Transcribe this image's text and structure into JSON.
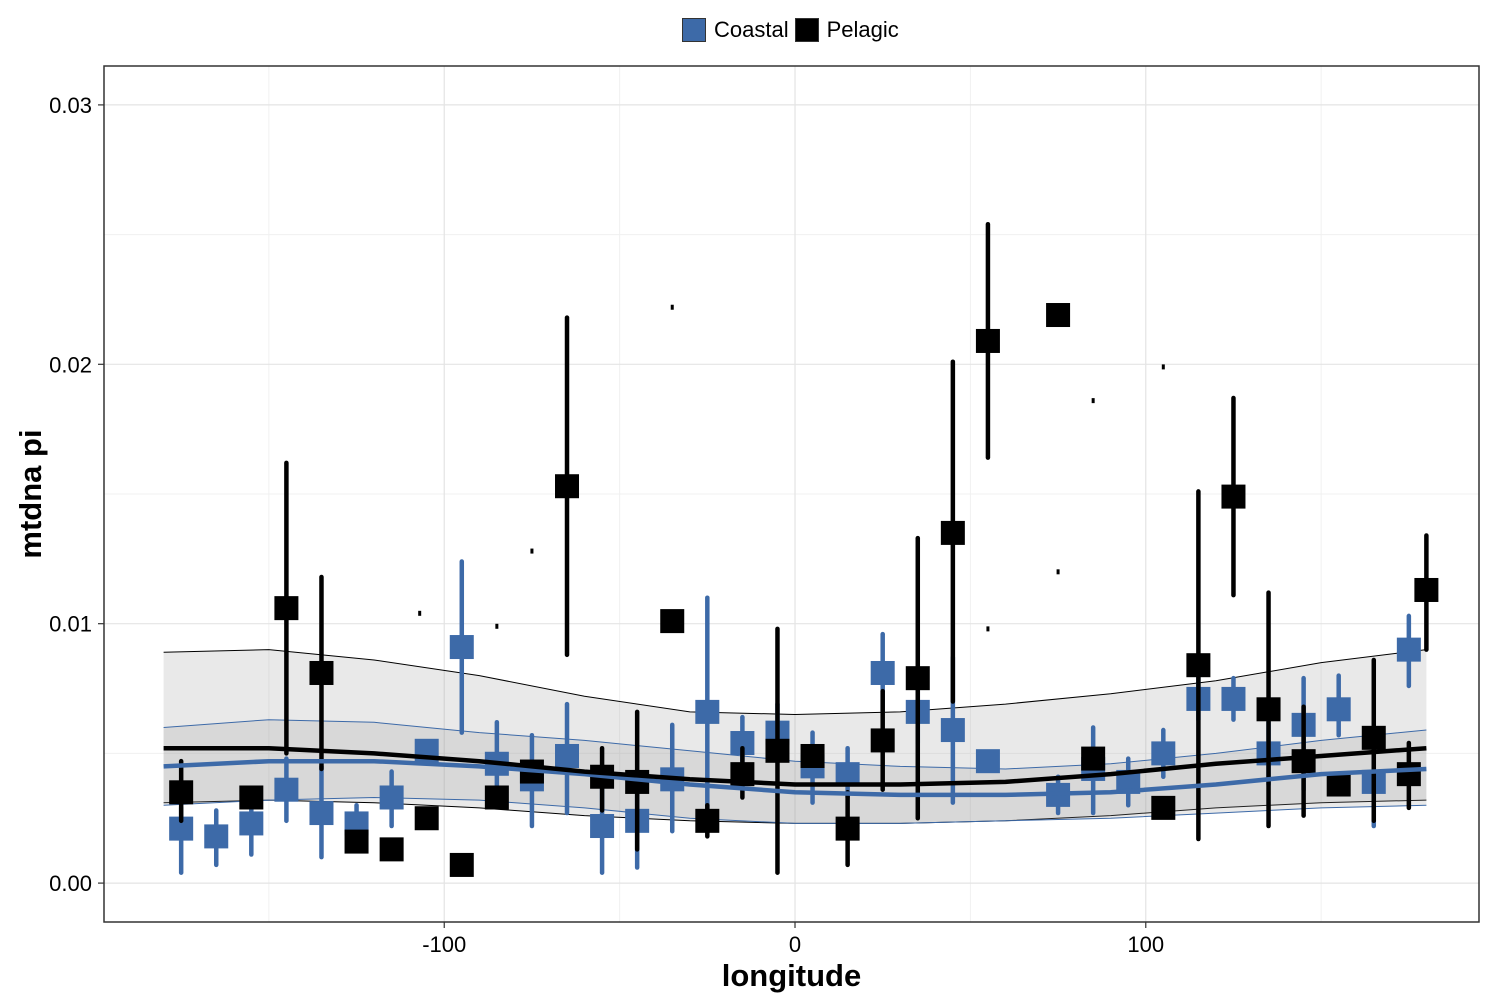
{
  "chart_data": {
    "type": "scatter",
    "xlabel": "longitude",
    "ylabel": "mtdna pi",
    "xlim": [
      -197,
      195
    ],
    "ylim": [
      -0.0015,
      0.0315
    ],
    "x_ticks": [
      -100,
      0,
      100
    ],
    "x_tick_labels": [
      "-100",
      "0",
      "100"
    ],
    "y_ticks": [
      0.0,
      0.01,
      0.02,
      0.03
    ],
    "y_tick_labels": [
      "0.00",
      "0.01",
      "0.02",
      "0.03"
    ],
    "grid": true,
    "legend_position": "top",
    "series": [
      {
        "name": "Coastal",
        "color": "#3d6aa8",
        "points": [
          {
            "x": -175,
            "y": 0.0021,
            "lo": 0.0004,
            "hi": 0.0029
          },
          {
            "x": -165,
            "y": 0.0018,
            "lo": 0.0007,
            "hi": 0.0028
          },
          {
            "x": -155,
            "y": 0.0023,
            "lo": 0.0011,
            "hi": 0.0035
          },
          {
            "x": -145,
            "y": 0.0036,
            "lo": 0.0024,
            "hi": 0.0048
          },
          {
            "x": -135,
            "y": 0.0027,
            "lo": 0.001,
            "hi": 0.0045
          },
          {
            "x": -125,
            "y": 0.0023,
            "lo": 0.0017,
            "hi": 0.003
          },
          {
            "x": -115,
            "y": 0.0033,
            "lo": 0.0022,
            "hi": 0.0043
          },
          {
            "x": -105,
            "y": 0.0051,
            "lo": 0.0051,
            "hi": 0.0051
          },
          {
            "x": -95,
            "y": 0.0091,
            "lo": 0.0058,
            "hi": 0.0124
          },
          {
            "x": -85,
            "y": 0.0046,
            "lo": 0.0031,
            "hi": 0.0062
          },
          {
            "x": -75,
            "y": 0.004,
            "lo": 0.0022,
            "hi": 0.0057
          },
          {
            "x": -65,
            "y": 0.0049,
            "lo": 0.0027,
            "hi": 0.0069
          },
          {
            "x": -55,
            "y": 0.0022,
            "lo": 0.0004,
            "hi": 0.0041
          },
          {
            "x": -45,
            "y": 0.0024,
            "lo": 0.0006,
            "hi": 0.0039
          },
          {
            "x": -35,
            "y": 0.004,
            "lo": 0.002,
            "hi": 0.0061
          },
          {
            "x": -25,
            "y": 0.0066,
            "lo": 0.0023,
            "hi": 0.011
          },
          {
            "x": -15,
            "y": 0.0054,
            "lo": 0.0044,
            "hi": 0.0064
          },
          {
            "x": -5,
            "y": 0.0058,
            "lo": 0.0047,
            "hi": 0.0069
          },
          {
            "x": 5,
            "y": 0.0045,
            "lo": 0.0031,
            "hi": 0.0058
          },
          {
            "x": 15,
            "y": 0.0042,
            "lo": 0.0033,
            "hi": 0.0052
          },
          {
            "x": 25,
            "y": 0.0081,
            "lo": 0.0066,
            "hi": 0.0096
          },
          {
            "x": 35,
            "y": 0.0066,
            "lo": 0.0054,
            "hi": 0.0078
          },
          {
            "x": 45,
            "y": 0.0059,
            "lo": 0.0031,
            "hi": 0.0087
          },
          {
            "x": 55,
            "y": 0.0047,
            "lo": 0.0047,
            "hi": 0.0047
          },
          {
            "x": 75,
            "y": 0.0034,
            "lo": 0.0027,
            "hi": 0.0041
          },
          {
            "x": 85,
            "y": 0.0044,
            "lo": 0.0027,
            "hi": 0.006
          },
          {
            "x": 95,
            "y": 0.0039,
            "lo": 0.003,
            "hi": 0.0048
          },
          {
            "x": 105,
            "y": 0.005,
            "lo": 0.0041,
            "hi": 0.0059
          },
          {
            "x": 115,
            "y": 0.0071,
            "lo": 0.0063,
            "hi": 0.008
          },
          {
            "x": 125,
            "y": 0.0071,
            "lo": 0.0063,
            "hi": 0.0079
          },
          {
            "x": 135,
            "y": 0.005,
            "lo": 0.0038,
            "hi": 0.0062
          },
          {
            "x": 145,
            "y": 0.0061,
            "lo": 0.0036,
            "hi": 0.0079
          },
          {
            "x": 155,
            "y": 0.0067,
            "lo": 0.0057,
            "hi": 0.008
          },
          {
            "x": 165,
            "y": 0.0039,
            "lo": 0.0022,
            "hi": 0.0056
          },
          {
            "x": 175,
            "y": 0.009,
            "lo": 0.0076,
            "hi": 0.0103
          }
        ],
        "smooth": [
          {
            "x": -180,
            "y": 0.0045
          },
          {
            "x": -150,
            "y": 0.0047
          },
          {
            "x": -120,
            "y": 0.0047
          },
          {
            "x": -90,
            "y": 0.0045
          },
          {
            "x": -60,
            "y": 0.0042
          },
          {
            "x": -30,
            "y": 0.0038
          },
          {
            "x": 0,
            "y": 0.0035
          },
          {
            "x": 30,
            "y": 0.0034
          },
          {
            "x": 60,
            "y": 0.0034
          },
          {
            "x": 90,
            "y": 0.0035
          },
          {
            "x": 120,
            "y": 0.0038
          },
          {
            "x": 150,
            "y": 0.0042
          },
          {
            "x": 180,
            "y": 0.0044
          }
        ],
        "band_lo": [
          {
            "x": -180,
            "y": 0.003
          },
          {
            "x": -150,
            "y": 0.0032
          },
          {
            "x": -120,
            "y": 0.0033
          },
          {
            "x": -90,
            "y": 0.0032
          },
          {
            "x": -60,
            "y": 0.0029
          },
          {
            "x": -30,
            "y": 0.0025
          },
          {
            "x": 0,
            "y": 0.0023
          },
          {
            "x": 30,
            "y": 0.0023
          },
          {
            "x": 60,
            "y": 0.0024
          },
          {
            "x": 90,
            "y": 0.0025
          },
          {
            "x": 120,
            "y": 0.0027
          },
          {
            "x": 150,
            "y": 0.0029
          },
          {
            "x": 180,
            "y": 0.003
          }
        ],
        "band_hi": [
          {
            "x": -180,
            "y": 0.006
          },
          {
            "x": -150,
            "y": 0.0063
          },
          {
            "x": -120,
            "y": 0.0062
          },
          {
            "x": -90,
            "y": 0.0058
          },
          {
            "x": -60,
            "y": 0.0055
          },
          {
            "x": -30,
            "y": 0.0051
          },
          {
            "x": 0,
            "y": 0.0047
          },
          {
            "x": 30,
            "y": 0.0045
          },
          {
            "x": 60,
            "y": 0.0044
          },
          {
            "x": 90,
            "y": 0.0046
          },
          {
            "x": 120,
            "y": 0.005
          },
          {
            "x": 150,
            "y": 0.0055
          },
          {
            "x": 180,
            "y": 0.0059
          }
        ]
      },
      {
        "name": "Pelagic",
        "color": "#000000",
        "points": [
          {
            "x": -175,
            "y": 0.0035,
            "lo": 0.0024,
            "hi": 0.0047
          },
          {
            "x": -155,
            "y": 0.0033,
            "lo": 0.0033,
            "hi": 0.0033
          },
          {
            "x": -145,
            "y": 0.0106,
            "lo": 0.005,
            "hi": 0.0162
          },
          {
            "x": -135,
            "y": 0.0081,
            "lo": 0.0044,
            "hi": 0.0118
          },
          {
            "x": -125,
            "y": 0.0016,
            "lo": 0.0016,
            "hi": 0.0016
          },
          {
            "x": -115,
            "y": 0.0013,
            "lo": 0.0013,
            "hi": 0.0013
          },
          {
            "x": -105,
            "y": 0.0025,
            "lo": 0.0025,
            "hi": 0.0025
          },
          {
            "x": -95,
            "y": 0.0007,
            "lo": 0.0007,
            "hi": 0.0007
          },
          {
            "x": -85,
            "y": 0.0033,
            "lo": 0.0033,
            "hi": 0.0033
          },
          {
            "x": -75,
            "y": 0.0043,
            "lo": 0.0043,
            "hi": 0.0043
          },
          {
            "x": -65,
            "y": 0.0153,
            "lo": 0.0088,
            "hi": 0.0218
          },
          {
            "x": -55,
            "y": 0.0041,
            "lo": 0.0028,
            "hi": 0.0052
          },
          {
            "x": -45,
            "y": 0.0039,
            "lo": 0.0013,
            "hi": 0.0066
          },
          {
            "x": -35,
            "y": 0.0101,
            "lo": 0.0101,
            "hi": 0.0101
          },
          {
            "x": -25,
            "y": 0.0024,
            "lo": 0.0018,
            "hi": 0.003
          },
          {
            "x": -15,
            "y": 0.0042,
            "lo": 0.0033,
            "hi": 0.0052
          },
          {
            "x": -5,
            "y": 0.0051,
            "lo": 0.0004,
            "hi": 0.0098
          },
          {
            "x": 5,
            "y": 0.0049,
            "lo": 0.0049,
            "hi": 0.0049
          },
          {
            "x": 15,
            "y": 0.0021,
            "lo": 0.0007,
            "hi": 0.0035
          },
          {
            "x": 25,
            "y": 0.0055,
            "lo": 0.0036,
            "hi": 0.0074
          },
          {
            "x": 35,
            "y": 0.0079,
            "lo": 0.0025,
            "hi": 0.0133
          },
          {
            "x": 45,
            "y": 0.0135,
            "lo": 0.007,
            "hi": 0.0201
          },
          {
            "x": 55,
            "y": 0.0209,
            "lo": 0.0164,
            "hi": 0.0254
          },
          {
            "x": 75,
            "y": 0.0219,
            "lo": 0.0219,
            "hi": 0.0219
          },
          {
            "x": 85,
            "y": 0.0048,
            "lo": 0.0048,
            "hi": 0.0048
          },
          {
            "x": 105,
            "y": 0.0029,
            "lo": 0.0029,
            "hi": 0.0029
          },
          {
            "x": 115,
            "y": 0.0084,
            "lo": 0.0017,
            "hi": 0.0151
          },
          {
            "x": 125,
            "y": 0.0149,
            "lo": 0.0111,
            "hi": 0.0187
          },
          {
            "x": 135,
            "y": 0.0067,
            "lo": 0.0022,
            "hi": 0.0112
          },
          {
            "x": 145,
            "y": 0.0047,
            "lo": 0.0026,
            "hi": 0.0068
          },
          {
            "x": 155,
            "y": 0.0038,
            "lo": 0.0038,
            "hi": 0.0038
          },
          {
            "x": 165,
            "y": 0.0056,
            "lo": 0.0024,
            "hi": 0.0086
          },
          {
            "x": 175,
            "y": 0.0042,
            "lo": 0.0029,
            "hi": 0.0054
          },
          {
            "x": 180,
            "y": 0.0113,
            "lo": 0.009,
            "hi": 0.0134
          }
        ],
        "stray_marks": [
          {
            "x": -107,
            "y": 0.0104
          },
          {
            "x": -85,
            "y": 0.0099
          },
          {
            "x": -75,
            "y": 0.0128
          },
          {
            "x": -35,
            "y": 0.0222
          },
          {
            "x": 55,
            "y": 0.0098
          },
          {
            "x": 75,
            "y": 0.012
          },
          {
            "x": 85,
            "y": 0.0186
          },
          {
            "x": 105,
            "y": 0.0199
          }
        ],
        "smooth": [
          {
            "x": -180,
            "y": 0.0052
          },
          {
            "x": -150,
            "y": 0.0052
          },
          {
            "x": -120,
            "y": 0.005
          },
          {
            "x": -90,
            "y": 0.0047
          },
          {
            "x": -60,
            "y": 0.0043
          },
          {
            "x": -30,
            "y": 0.004
          },
          {
            "x": 0,
            "y": 0.0038
          },
          {
            "x": 30,
            "y": 0.0038
          },
          {
            "x": 60,
            "y": 0.0039
          },
          {
            "x": 90,
            "y": 0.0042
          },
          {
            "x": 120,
            "y": 0.0046
          },
          {
            "x": 150,
            "y": 0.0049
          },
          {
            "x": 180,
            "y": 0.0052
          }
        ],
        "band_lo": [
          {
            "x": -180,
            "y": 0.0031
          },
          {
            "x": -150,
            "y": 0.0032
          },
          {
            "x": -120,
            "y": 0.0031
          },
          {
            "x": -90,
            "y": 0.0029
          },
          {
            "x": -60,
            "y": 0.0026
          },
          {
            "x": -30,
            "y": 0.0024
          },
          {
            "x": 0,
            "y": 0.0023
          },
          {
            "x": 30,
            "y": 0.0023
          },
          {
            "x": 60,
            "y": 0.0024
          },
          {
            "x": 90,
            "y": 0.0026
          },
          {
            "x": 120,
            "y": 0.0029
          },
          {
            "x": 150,
            "y": 0.0031
          },
          {
            "x": 180,
            "y": 0.0032
          }
        ],
        "band_hi": [
          {
            "x": -180,
            "y": 0.0089
          },
          {
            "x": -150,
            "y": 0.009
          },
          {
            "x": -120,
            "y": 0.0086
          },
          {
            "x": -90,
            "y": 0.008
          },
          {
            "x": -60,
            "y": 0.0072
          },
          {
            "x": -30,
            "y": 0.0066
          },
          {
            "x": 0,
            "y": 0.0065
          },
          {
            "x": 30,
            "y": 0.0066
          },
          {
            "x": 60,
            "y": 0.0069
          },
          {
            "x": 90,
            "y": 0.0073
          },
          {
            "x": 120,
            "y": 0.0078
          },
          {
            "x": 150,
            "y": 0.0085
          },
          {
            "x": 180,
            "y": 0.009
          }
        ]
      }
    ]
  }
}
